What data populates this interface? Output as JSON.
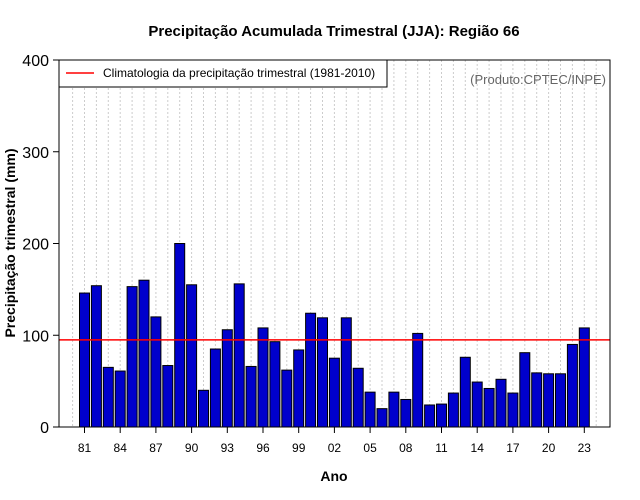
{
  "chart_data": {
    "type": "bar",
    "title": "Precipitação Acumulada Trimestral (JJA): Região 66",
    "xlabel": "Ano",
    "ylabel": "Precipitação trimestral (mm)",
    "ylim": [
      0,
      400
    ],
    "yticks": [
      "0",
      "100",
      "200",
      "300",
      "400"
    ],
    "x_tick_labels": [
      "81",
      "84",
      "87",
      "90",
      "93",
      "96",
      "99",
      "02",
      "05",
      "08",
      "11",
      "14",
      "17",
      "20",
      "23"
    ],
    "categories": [
      "1981",
      "1982",
      "1983",
      "1984",
      "1985",
      "1986",
      "1987",
      "1988",
      "1989",
      "1990",
      "1991",
      "1992",
      "1993",
      "1994",
      "1995",
      "1996",
      "1997",
      "1998",
      "1999",
      "2000",
      "2001",
      "2002",
      "2003",
      "2004",
      "2005",
      "2006",
      "2007",
      "2008",
      "2009",
      "2010",
      "2011",
      "2012",
      "2013",
      "2014",
      "2015",
      "2016",
      "2017",
      "2018",
      "2019",
      "2020",
      "2021",
      "2022",
      "2023"
    ],
    "values": [
      146,
      154,
      65,
      61,
      153,
      160,
      120,
      67,
      200,
      155,
      40,
      85,
      106,
      156,
      66,
      108,
      93,
      62,
      84,
      124,
      119,
      75,
      119,
      64,
      38,
      20,
      38,
      30,
      102,
      24,
      25,
      37,
      76,
      49,
      42,
      52,
      37,
      81,
      59,
      58,
      58,
      90,
      108
    ],
    "bar_color": "#0000cc",
    "reference_line": {
      "value": 95,
      "color": "#ff0000",
      "label": "Climatologia da precipitação trimestral (1981-2010)"
    },
    "legend_position": "top-left",
    "source_note": "(Produto:CPTEC/INPE)"
  }
}
